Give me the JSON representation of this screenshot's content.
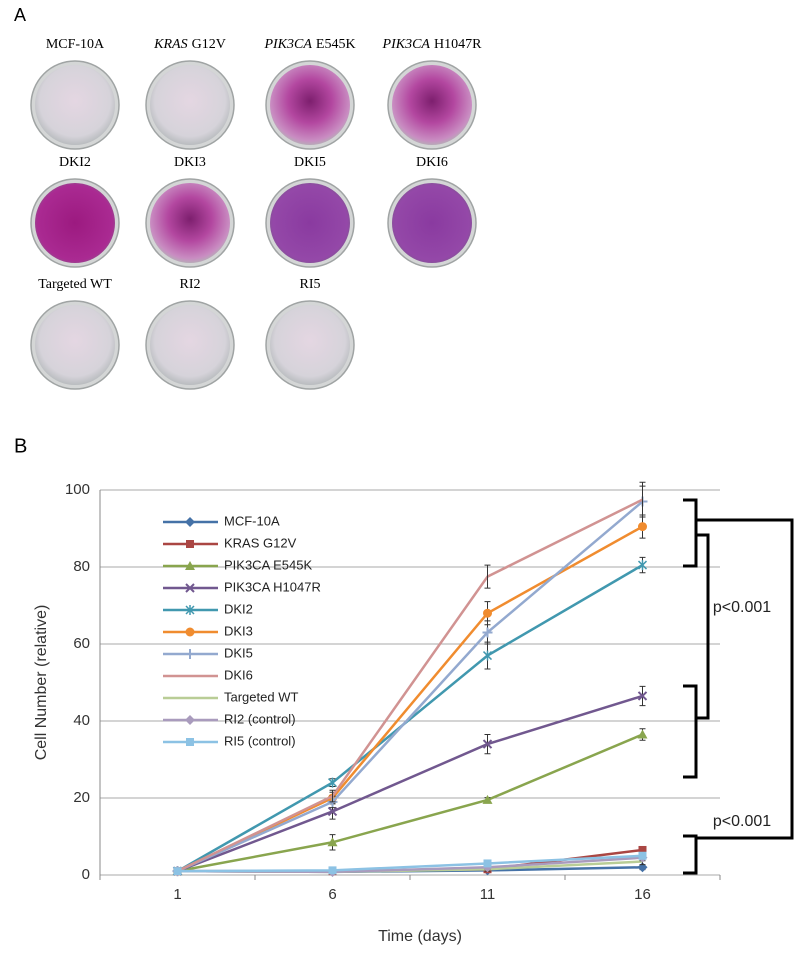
{
  "panel_a": {
    "label": "A",
    "dishes": [
      {
        "label": "MCF-10A"
      },
      {
        "gene": "KRAS",
        "label": "G12V"
      },
      {
        "gene": "PIK3CA",
        "label": "E545K"
      },
      {
        "gene": "PIK3CA",
        "label": "H1047R"
      },
      {
        "label": "DKI2"
      },
      {
        "label": "DKI3"
      },
      {
        "label": "DKI5"
      },
      {
        "label": "DKI6"
      },
      {
        "label": "Targeted WT"
      },
      {
        "label": "RI2"
      },
      {
        "label": "RI5"
      }
    ]
  },
  "chart_data": {
    "type": "line",
    "panel_label": "B",
    "x_label": "Time (days)",
    "y_label": "Cell Number (relative)",
    "categories": [
      "1",
      "6",
      "11",
      "16"
    ],
    "ylim": [
      0,
      100
    ],
    "yticks": [
      0,
      20,
      40,
      60,
      80,
      100
    ],
    "grid": true,
    "legend": "upper-left",
    "annotations": [
      "p<0.001",
      "p<0.001"
    ],
    "series": [
      {
        "name": "MCF-10A",
        "color": "#4572a7",
        "marker": "diamond",
        "values": [
          1,
          0.8,
          1.2,
          2
        ],
        "errors": [
          0.2,
          0.3,
          0.4,
          0.6
        ]
      },
      {
        "name": "KRAS G12V",
        "color": "#aa4643",
        "marker": "square",
        "values": [
          1,
          1,
          1.5,
          6.5
        ],
        "errors": [
          0.2,
          0.3,
          0.5,
          0.8
        ]
      },
      {
        "name": "PIK3CA E545K",
        "color": "#89a54e",
        "marker": "triangle",
        "values": [
          1,
          8.5,
          19.5,
          36.5
        ],
        "errors": [
          0.3,
          2,
          0.6,
          1.5
        ]
      },
      {
        "name": "PIK3CA H1047R",
        "color": "#71588f",
        "marker": "x",
        "values": [
          1,
          16.5,
          34,
          46.5
        ],
        "errors": [
          0.3,
          2,
          2.5,
          2.5
        ]
      },
      {
        "name": "DKI2",
        "color": "#4198af",
        "marker": "star",
        "values": [
          1,
          24,
          57,
          80.5
        ],
        "errors": [
          0.3,
          1,
          3.5,
          2
        ]
      },
      {
        "name": "DKI3",
        "color": "#f08c2f",
        "marker": "circle",
        "values": [
          1,
          20,
          68,
          90.5
        ],
        "errors": [
          0.3,
          1.5,
          3,
          3
        ]
      },
      {
        "name": "DKI5",
        "color": "#93a9cf",
        "marker": "plus",
        "values": [
          1,
          19,
          63,
          97
        ],
        "errors": [
          0.3,
          1.5,
          3,
          4
        ]
      },
      {
        "name": "DKI6",
        "color": "#d19392",
        "marker": "none",
        "values": [
          1,
          20.5,
          77.5,
          97.5
        ],
        "errors": [
          0.3,
          1.5,
          3,
          4.5
        ]
      },
      {
        "name": "Targeted WT",
        "color": "#b9cd96",
        "marker": "none",
        "values": [
          1,
          0.8,
          1.5,
          3.5
        ],
        "errors": [
          0.2,
          0.3,
          0.5,
          0.8
        ]
      },
      {
        "name": "RI2 (control)",
        "color": "#a99bbd",
        "marker": "diamond",
        "values": [
          1,
          0.8,
          2,
          4.5
        ],
        "errors": [
          0.2,
          0.3,
          0.5,
          0.8
        ]
      },
      {
        "name": "RI5 (control)",
        "color": "#8cc2e4",
        "marker": "square",
        "values": [
          1,
          1.2,
          3,
          5
        ],
        "errors": [
          0.2,
          0.3,
          0.5,
          0.8
        ]
      }
    ]
  }
}
